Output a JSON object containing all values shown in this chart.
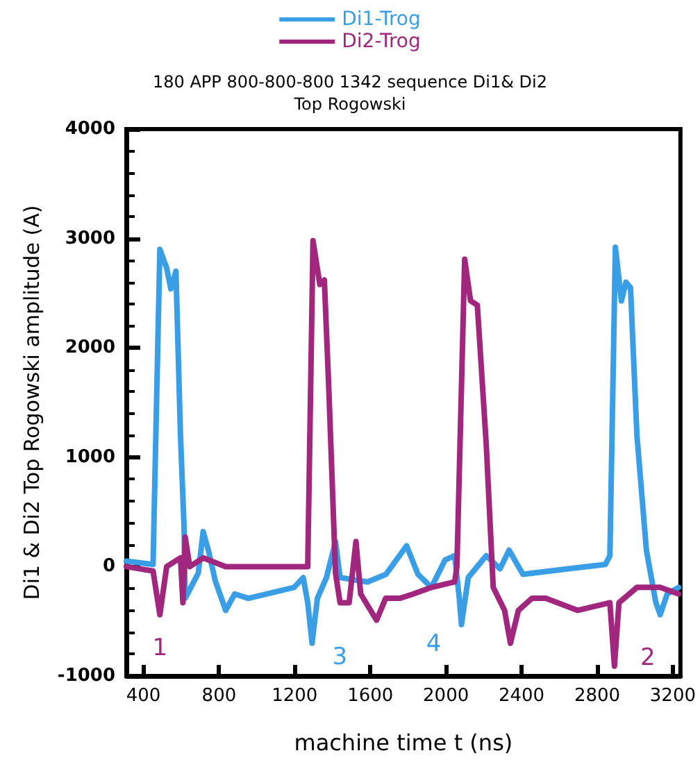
{
  "chart_data": {
    "type": "line",
    "title": "180 APP 800-800-800 1342 sequence Di1& Di2\nTop Rogowski",
    "xlabel": "machine time t (ns)",
    "ylabel": "Di1 & Di2 Top Rogowski amplitude (A)",
    "xlim": [
      310,
      3240
    ],
    "xticks": [
      400,
      800,
      1200,
      1600,
      2000,
      2400,
      2800,
      3200
    ],
    "ylim": [
      -1000,
      4000
    ],
    "yticks": [
      -1000,
      0,
      1000,
      2000,
      3000,
      4000
    ],
    "grid": false,
    "legend": "top",
    "marker": "none",
    "line_style": "solid",
    "series": [
      {
        "name": "Di1-Trog",
        "color": "#3a9ee6",
        "x": [
          310,
          451,
          487,
          523,
          545,
          572,
          596,
          615,
          621,
          690,
          716,
          745,
          780,
          835,
          883,
          955,
          1197,
          1245,
          1269,
          1292,
          1320,
          1368,
          1416,
          1440,
          1585,
          1683,
          1792,
          1852,
          1923,
          1995,
          2046,
          2070,
          2082,
          2118,
          2213,
          2286,
          2334,
          2407,
          2648,
          2843,
          2867,
          2896,
          2928,
          2952,
          2976,
          3010,
          3060,
          3109,
          3133,
          3170,
          3230
        ],
        "values": [
          50,
          20,
          2900,
          2730,
          2540,
          2700,
          1200,
          360,
          -290,
          -60,
          320,
          140,
          -130,
          -400,
          -250,
          -290,
          -190,
          -100,
          -330,
          -700,
          -290,
          -100,
          230,
          -100,
          -140,
          -70,
          190,
          -70,
          -190,
          60,
          100,
          -280,
          -530,
          -100,
          100,
          -20,
          150,
          -70,
          -20,
          20,
          100,
          2920,
          2430,
          2600,
          2550,
          1200,
          150,
          -320,
          -440,
          -250,
          -190
        ]
      },
      {
        "name": "Di2-Trog",
        "color": "#a0267e",
        "x": [
          310,
          451,
          487,
          523,
          596,
          609,
          621,
          645,
          716,
          835,
          1245,
          1269,
          1297,
          1333,
          1357,
          1381,
          1416,
          1440,
          1488,
          1524,
          1549,
          1633,
          1681,
          1755,
          1828,
          1923,
          2046,
          2058,
          2099,
          2130,
          2166,
          2213,
          2250,
          2310,
          2341,
          2383,
          2455,
          2528,
          2697,
          2867,
          2891,
          2915,
          3010,
          3133,
          3230
        ],
        "values": [
          0,
          -40,
          -440,
          0,
          80,
          -330,
          270,
          0,
          80,
          0,
          0,
          0,
          2980,
          2580,
          2620,
          1600,
          -60,
          -330,
          -330,
          230,
          -250,
          -490,
          -290,
          -290,
          -250,
          -190,
          -140,
          0,
          2810,
          2430,
          2390,
          1120,
          -190,
          -400,
          -700,
          -400,
          -290,
          -290,
          -400,
          -330,
          -910,
          -330,
          -190,
          -190,
          -250
        ]
      }
    ],
    "annotations": [
      {
        "text": "1",
        "x": 487,
        "y": -440
      },
      {
        "text": "3",
        "x": 1292,
        "y": -700
      },
      {
        "text": "4",
        "x": 2082,
        "y": -530
      },
      {
        "text": "2",
        "x": 2891,
        "y": -910
      }
    ]
  }
}
